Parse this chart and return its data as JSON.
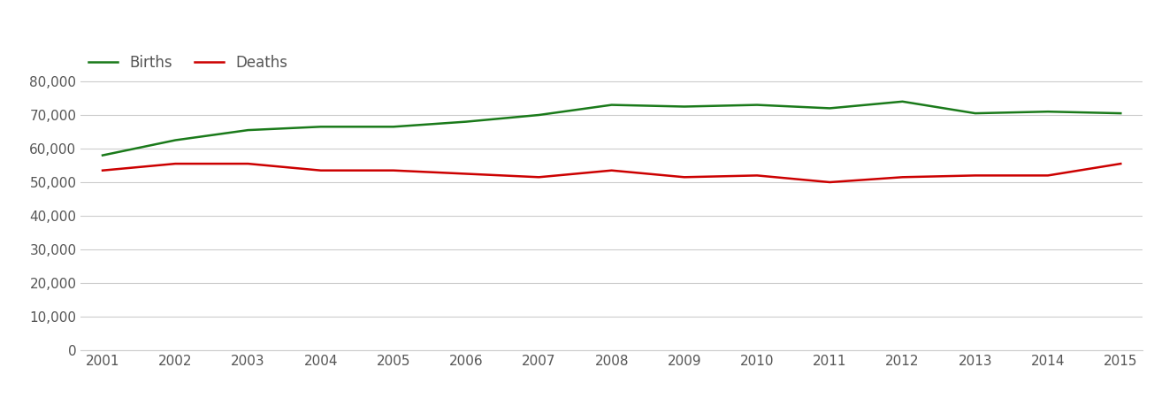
{
  "years": [
    2001,
    2002,
    2003,
    2004,
    2005,
    2006,
    2007,
    2008,
    2009,
    2010,
    2011,
    2012,
    2013,
    2014,
    2015
  ],
  "births": [
    58000,
    62500,
    65500,
    66500,
    66500,
    68000,
    70000,
    73000,
    72500,
    73000,
    72000,
    74000,
    70500,
    71000,
    70500
  ],
  "deaths": [
    53500,
    55500,
    55500,
    53500,
    53500,
    52500,
    51500,
    53500,
    51500,
    52000,
    50000,
    51500,
    52000,
    52000,
    55500
  ],
  "births_color": "#1a7a1a",
  "deaths_color": "#cc0000",
  "background_color": "#ffffff",
  "grid_color": "#cccccc",
  "line_width": 1.8,
  "ylim": [
    0,
    90000
  ],
  "yticks": [
    0,
    10000,
    20000,
    30000,
    40000,
    50000,
    60000,
    70000,
    80000
  ],
  "legend_labels": [
    "Births",
    "Deaths"
  ],
  "tick_label_color": "#555555",
  "tick_fontsize": 11
}
